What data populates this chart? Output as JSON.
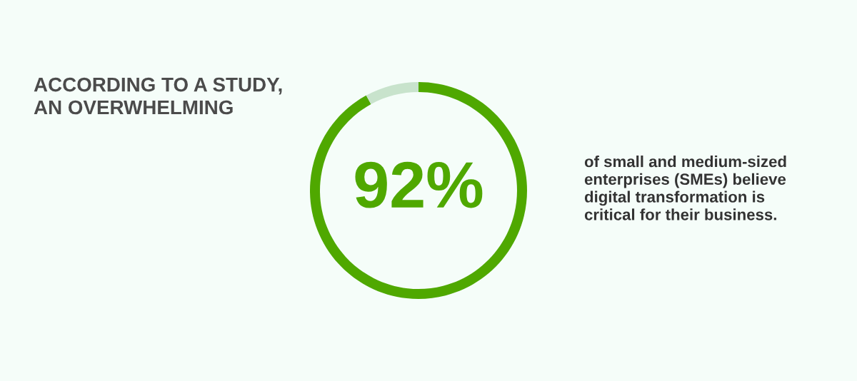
{
  "chart_data": {
    "type": "donut",
    "title": "ACCORDING TO A STUDY, AN OVERWHELMING",
    "categories": [
      null,
      null
    ],
    "values": [
      92,
      8
    ],
    "colors": [
      "#4fa800",
      "#c8e3cc"
    ],
    "value_labels": [
      "92%",
      null
    ],
    "annotations": [
      "of small and medium-sized enterprises (SMEs) believe digital transformation is critical for their business."
    ]
  }
}
